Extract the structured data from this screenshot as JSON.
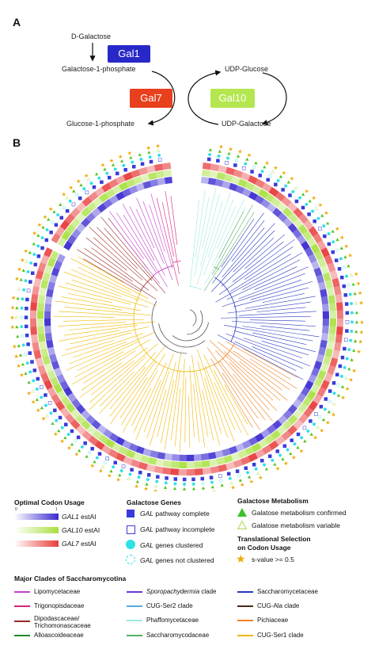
{
  "panel_a": {
    "label": "A",
    "d_galactose": "D-Galactose",
    "galactose_1p": "Galactose-1-phosphate",
    "glucose_1p": "Glucose-1-phosphate",
    "udp_glucose": "UDP-Glucose",
    "udp_galactose": "UDP-Galactose",
    "gal1": "Gal1",
    "gal7": "Gal7",
    "gal10": "Gal10",
    "colors": {
      "gal1": "#2828c8",
      "gal7": "#e8401c",
      "gal10": "#b4e650"
    }
  },
  "panel_b": {
    "label": "B"
  },
  "legend": {
    "optimal_codon": {
      "title": "Optimal Codon Usage",
      "tick_min": "0",
      "tick_max": "1",
      "rows": [
        {
          "name": "GAL1",
          "suffix": " estAI",
          "color": "#3a2ad0"
        },
        {
          "name": "GAL10",
          "suffix": " estAI",
          "color": "#a8e040"
        },
        {
          "name": "GAL7",
          "suffix": " estAI",
          "color": "#e83c3c"
        }
      ]
    },
    "galactose_genes": {
      "title": "Galactose Genes",
      "items": [
        {
          "prefix": "GAL",
          "text": " pathway complete"
        },
        {
          "prefix": "GAL",
          "text": " pathway incomplete"
        },
        {
          "prefix": "GAL",
          "text": " genes clustered"
        },
        {
          "prefix": "GAL",
          "text": " genes not clustered"
        }
      ]
    },
    "galactose_metabolism": {
      "title": "Galactose Metabolism",
      "confirmed": "Galatose metabolism confirmed",
      "variable": "Galatose metabolism variable"
    },
    "translational": {
      "title_line1": "Translational Selection",
      "title_line2": "on Codon Usage",
      "star_label": "s-value >= 0.5"
    },
    "clades": {
      "title": "Major Clades of Saccharomycotina",
      "col1": [
        {
          "label": "Lipomycetaceae",
          "color": "#c040c8"
        },
        {
          "label": "Trigonopisdaceae",
          "color": "#d82080"
        },
        {
          "label": "Dipodascaceae/",
          "label2": "Trichomonascaceae",
          "color": "#9a2828"
        },
        {
          "label": "Alloascoideaceae",
          "color": "#208828"
        }
      ],
      "col2": [
        {
          "label": "Sporopachydermia clade",
          "italic_part": "Sporopachydermia",
          "color": "#6a3ad0"
        },
        {
          "label": "CUG-Ser2 clade",
          "color": "#5aa8d8"
        },
        {
          "label": "Phaffomycetaceae",
          "color": "#a0e8e0"
        },
        {
          "label": "Saccharomycodaceae",
          "color": "#58b060"
        }
      ],
      "col3": [
        {
          "label": "Saccharomycetaceae",
          "color": "#2838c0"
        },
        {
          "label": "CUG-Ala clade",
          "color": "#4a2818"
        },
        {
          "label": "Pichiaceae",
          "color": "#f08020"
        },
        {
          "label": "CUG-Ser1 clade",
          "color": "#f0b800"
        }
      ]
    }
  }
}
